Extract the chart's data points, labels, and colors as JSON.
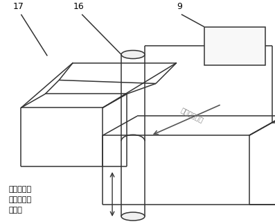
{
  "bg_color": "#ffffff",
  "line_color": "#333333",
  "label_color": "#000000",
  "bottom_text": "线电极大幅\n值非对称轴\n向振动",
  "arrow_text": "工作进给方向",
  "label_17": "17",
  "label_16": "16",
  "label_9": "9"
}
